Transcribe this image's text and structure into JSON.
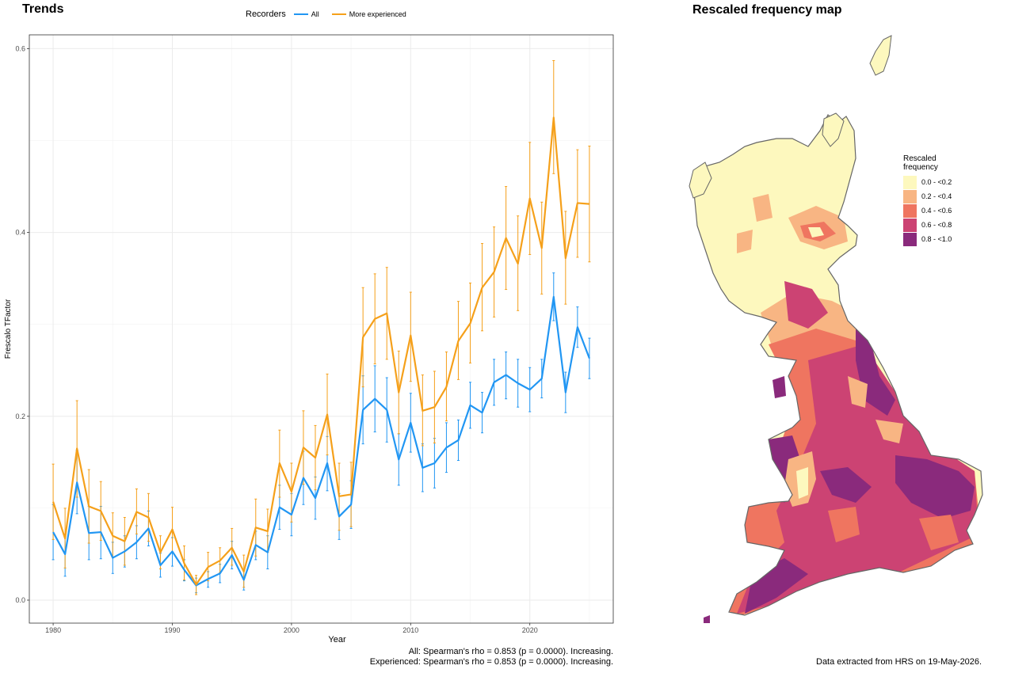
{
  "trends_title": "Trends",
  "map_title": "Rescaled frequency map",
  "legend": {
    "title": "Recorders",
    "items": [
      {
        "name": "All",
        "color": "#2196f3"
      },
      {
        "name": "More experienced",
        "color": "#f5a01a"
      }
    ]
  },
  "stats": {
    "all": "All: Spearman's rho = 0.853 (p = 0.0000). Increasing.",
    "experienced": "Experienced: Spearman's rho = 0.853 (p = 0.0000). Increasing."
  },
  "data_note": "Data extracted from HRS on 19-May-2026.",
  "map_legend": {
    "title_line1": "Rescaled",
    "title_line2": "frequency",
    "bins": [
      {
        "label": "0.0 - <0.2",
        "color": "#fdf8be"
      },
      {
        "label": "0.2 - <0.4",
        "color": "#f8b583"
      },
      {
        "label": "0.4 - <0.6",
        "color": "#ef7560"
      },
      {
        "label": "0.6 - <0.8",
        "color": "#cc4373"
      },
      {
        "label": "0.8 - <1.0",
        "color": "#8a2a7c"
      }
    ]
  },
  "chart_data": {
    "type": "line",
    "xlabel": "Year",
    "ylabel": "Frescalo TFactor",
    "xlim": [
      1978,
      2027
    ],
    "ylim": [
      -0.025,
      0.615
    ],
    "xticks": [
      1980,
      1990,
      2000,
      2010,
      2020
    ],
    "yticks": [
      0.0,
      0.2,
      0.4,
      0.6
    ],
    "grid": true,
    "legend_position": "top",
    "x": [
      1980,
      1981,
      1982,
      1983,
      1984,
      1985,
      1986,
      1987,
      1988,
      1989,
      1990,
      1991,
      1992,
      1993,
      1994,
      1995,
      1996,
      1997,
      1998,
      1999,
      2000,
      2001,
      2002,
      2003,
      2004,
      2005,
      2006,
      2007,
      2008,
      2009,
      2010,
      2011,
      2012,
      2013,
      2014,
      2015,
      2016,
      2017,
      2018,
      2019,
      2020,
      2021,
      2022,
      2023,
      2024,
      2025
    ],
    "series": [
      {
        "name": "All",
        "values": [
          0.074,
          0.05,
          0.128,
          0.073,
          0.074,
          0.046,
          0.053,
          0.063,
          0.078,
          0.038,
          0.053,
          0.033,
          0.016,
          0.023,
          0.029,
          0.049,
          0.022,
          0.06,
          0.052,
          0.101,
          0.093,
          0.133,
          0.111,
          0.149,
          0.091,
          0.104,
          0.207,
          0.219,
          0.207,
          0.153,
          0.193,
          0.144,
          0.149,
          0.166,
          0.174,
          0.212,
          0.204,
          0.237,
          0.245,
          0.236,
          0.229,
          0.241,
          0.33,
          0.226,
          0.297,
          0.263
        ],
        "lower": [
          0.044,
          0.026,
          0.094,
          0.044,
          0.045,
          0.029,
          0.036,
          0.045,
          0.059,
          0.025,
          0.037,
          0.021,
          0.008,
          0.014,
          0.019,
          0.034,
          0.011,
          0.044,
          0.034,
          0.077,
          0.07,
          0.104,
          0.088,
          0.119,
          0.066,
          0.078,
          0.17,
          0.183,
          0.172,
          0.125,
          0.161,
          0.118,
          0.122,
          0.139,
          0.152,
          0.187,
          0.182,
          0.212,
          0.219,
          0.21,
          0.205,
          0.22,
          0.304,
          0.204,
          0.275,
          0.241
        ],
        "upper": [
          0.104,
          0.072,
          0.163,
          0.102,
          0.102,
          0.063,
          0.07,
          0.081,
          0.097,
          0.051,
          0.068,
          0.044,
          0.024,
          0.031,
          0.039,
          0.064,
          0.033,
          0.075,
          0.07,
          0.125,
          0.116,
          0.162,
          0.134,
          0.178,
          0.116,
          0.13,
          0.244,
          0.255,
          0.242,
          0.181,
          0.225,
          0.17,
          0.176,
          0.193,
          0.196,
          0.237,
          0.226,
          0.262,
          0.27,
          0.262,
          0.253,
          0.262,
          0.356,
          0.248,
          0.319,
          0.285
        ]
      },
      {
        "name": "More experienced",
        "values": [
          0.107,
          0.067,
          0.165,
          0.102,
          0.097,
          0.07,
          0.064,
          0.096,
          0.09,
          0.052,
          0.077,
          0.04,
          0.017,
          0.036,
          0.043,
          0.057,
          0.031,
          0.079,
          0.075,
          0.149,
          0.118,
          0.166,
          0.155,
          0.202,
          0.113,
          0.115,
          0.286,
          0.306,
          0.312,
          0.226,
          0.288,
          0.206,
          0.21,
          0.232,
          0.282,
          0.301,
          0.34,
          0.357,
          0.394,
          0.366,
          0.437,
          0.383,
          0.525,
          0.372,
          0.432,
          0.431
        ],
        "lower": [
          0.066,
          0.035,
          0.112,
          0.062,
          0.065,
          0.047,
          0.038,
          0.072,
          0.064,
          0.034,
          0.052,
          0.022,
          0.006,
          0.021,
          0.03,
          0.038,
          0.014,
          0.048,
          0.052,
          0.112,
          0.085,
          0.126,
          0.12,
          0.158,
          0.076,
          0.08,
          0.232,
          0.257,
          0.262,
          0.181,
          0.238,
          0.168,
          0.171,
          0.195,
          0.24,
          0.258,
          0.293,
          0.308,
          0.338,
          0.315,
          0.376,
          0.333,
          0.464,
          0.322,
          0.373,
          0.368
        ],
        "upper": [
          0.148,
          0.1,
          0.217,
          0.142,
          0.129,
          0.095,
          0.09,
          0.121,
          0.116,
          0.07,
          0.101,
          0.059,
          0.027,
          0.052,
          0.057,
          0.078,
          0.049,
          0.11,
          0.099,
          0.185,
          0.149,
          0.206,
          0.19,
          0.246,
          0.149,
          0.15,
          0.34,
          0.355,
          0.362,
          0.271,
          0.335,
          0.245,
          0.249,
          0.27,
          0.325,
          0.345,
          0.388,
          0.406,
          0.45,
          0.418,
          0.498,
          0.433,
          0.587,
          0.423,
          0.49,
          0.494
        ]
      }
    ]
  }
}
